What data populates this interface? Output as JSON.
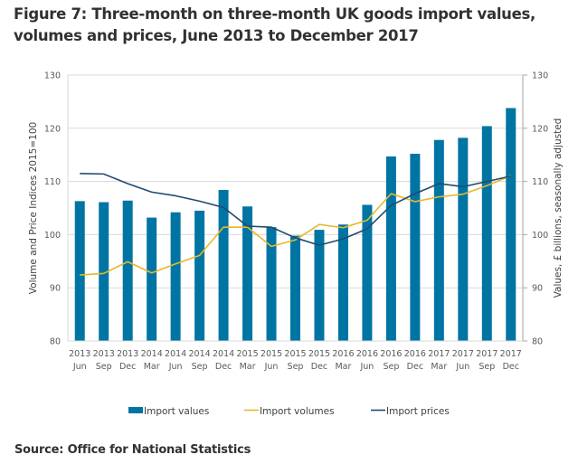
{
  "title": "Figure 7: Three-month on three-month UK goods import values, volumes and prices, June 2013 to December 2017",
  "source": "Source: Office for National Statistics",
  "chart_data": {
    "type": "bar+line",
    "title": "Figure 7: Three-month on three-month UK goods import values, volumes and prices, June 2013 to December 2017",
    "categories": [
      [
        "2013",
        "Jun"
      ],
      [
        "2013",
        "Sep"
      ],
      [
        "2013",
        "Dec"
      ],
      [
        "2014",
        "Mar"
      ],
      [
        "2014",
        "Jun"
      ],
      [
        "2014",
        "Sep"
      ],
      [
        "2014",
        "Dec"
      ],
      [
        "2015",
        "Mar"
      ],
      [
        "2015",
        "Jun"
      ],
      [
        "2015",
        "Sep"
      ],
      [
        "2015",
        "Dec"
      ],
      [
        "2016",
        "Mar"
      ],
      [
        "2016",
        "Jun"
      ],
      [
        "2016",
        "Sep"
      ],
      [
        "2016",
        "Dec"
      ],
      [
        "2017",
        "Mar"
      ],
      [
        "2017",
        "Jun"
      ],
      [
        "2017",
        "Sep"
      ],
      [
        "2017",
        "Dec"
      ]
    ],
    "ylabel_left": "Volume and Price Indices 2015=100",
    "ylabel_right": "Values, £ billions, seasonally adjusted",
    "ylim_left": [
      80,
      130
    ],
    "ylim_right": [
      80,
      130
    ],
    "yticks": [
      80,
      90,
      100,
      110,
      120,
      130
    ],
    "grid": true,
    "legend_position": "bottom",
    "series": [
      {
        "name": "Import values",
        "type": "bar",
        "axis": "right",
        "color": "#0075a3",
        "values": [
          106.3,
          106.1,
          106.4,
          103.2,
          104.2,
          104.5,
          108.4,
          105.3,
          101.4,
          99.8,
          100.9,
          101.9,
          105.6,
          114.7,
          115.2,
          117.8,
          118.2,
          120.4,
          123.8
        ]
      },
      {
        "name": "Import volumes",
        "type": "line",
        "axis": "left",
        "color": "#e5b92b",
        "values": [
          92.4,
          92.7,
          94.9,
          92.8,
          94.5,
          96.1,
          101.4,
          101.4,
          97.8,
          99.0,
          101.9,
          101.3,
          102.7,
          107.7,
          106.2,
          107.1,
          107.6,
          109.2,
          111.1
        ]
      },
      {
        "name": "Import prices",
        "type": "line",
        "axis": "left",
        "color": "#204a6e",
        "values": [
          111.5,
          111.4,
          109.6,
          108.0,
          107.3,
          106.3,
          105.1,
          101.6,
          101.4,
          99.4,
          98.0,
          99.2,
          101.1,
          105.5,
          107.7,
          109.6,
          109.0,
          110.0,
          111.0
        ]
      }
    ]
  }
}
